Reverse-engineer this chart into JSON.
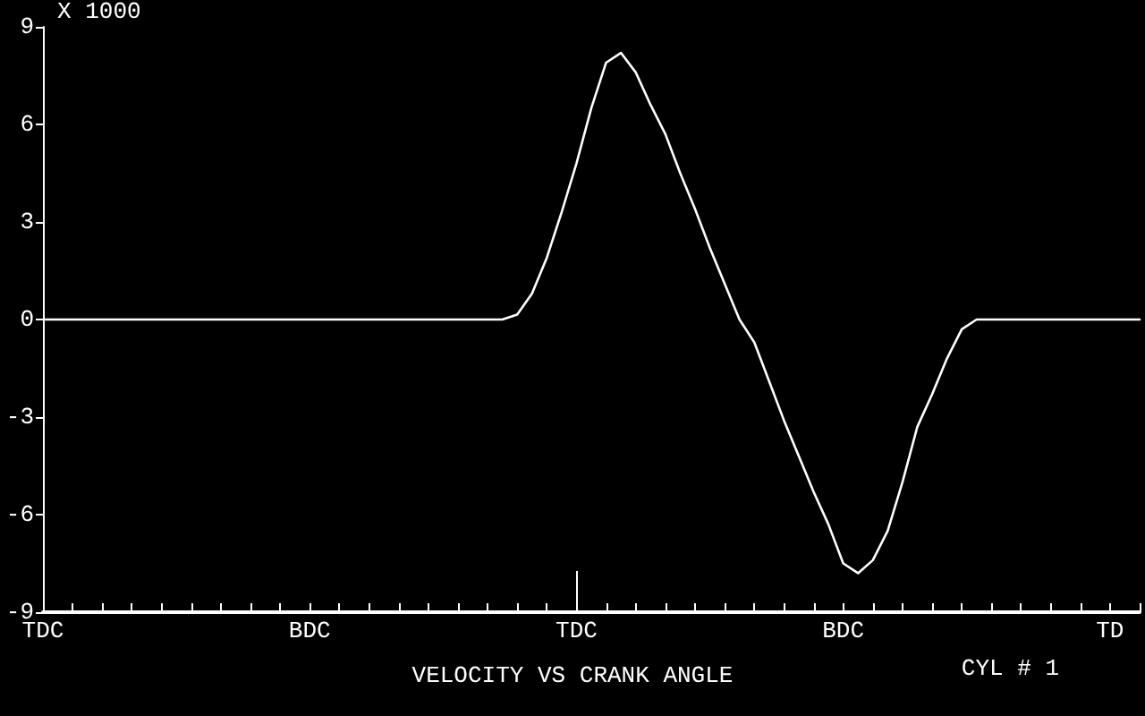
{
  "chart_data": {
    "type": "line",
    "title": "VELOCITY VS CRANK ANGLE",
    "ylabel": "X 1000",
    "annotations": [
      "CYL # 1"
    ],
    "categories": [
      "TDC",
      null,
      null,
      null,
      null,
      null,
      null,
      null,
      null,
      null,
      null,
      null,
      null,
      null,
      null,
      null,
      null,
      null,
      "BDC",
      null,
      null,
      null,
      null,
      null,
      null,
      null,
      null,
      null,
      null,
      null,
      null,
      null,
      null,
      null,
      null,
      null,
      "TDC",
      null,
      null,
      null,
      null,
      null,
      null,
      null,
      null,
      null,
      null,
      null,
      null,
      null,
      null,
      null,
      null,
      null,
      "BDC",
      null,
      null,
      null,
      null,
      null,
      null,
      null,
      null,
      null,
      null,
      null,
      null,
      null,
      null,
      null,
      null,
      null,
      "TD",
      null,
      null
    ],
    "series": [
      {
        "color": "#ffffff",
        "values": [
          0,
          0,
          0,
          0,
          0,
          0,
          0,
          0,
          0,
          0,
          0,
          0,
          0,
          0,
          0,
          0,
          0,
          0,
          0,
          0,
          0,
          0,
          0,
          0,
          0,
          0,
          0,
          0,
          0,
          0,
          0,
          0,
          0.15,
          0.8,
          1.9,
          3.3,
          4.8,
          6.5,
          7.9,
          8.2,
          7.6,
          6.6,
          5.7,
          4.5,
          3.4,
          2.2,
          1.1,
          0,
          -0.7,
          -1.9,
          -3.1,
          -4.2,
          -5.3,
          -6.3,
          -7.5,
          -7.8,
          -7.4,
          -6.5,
          -5.0,
          -3.3,
          -2.3,
          -1.2,
          -0.3,
          0,
          0,
          0,
          0,
          0,
          0,
          0,
          0,
          0,
          0,
          0,
          0
        ]
      }
    ],
    "ylim": [
      -9,
      9
    ],
    "yticks": [
      -9,
      -6,
      -3,
      0,
      3,
      6,
      9
    ],
    "grid": false,
    "marker": "none",
    "line_style": "solid"
  }
}
